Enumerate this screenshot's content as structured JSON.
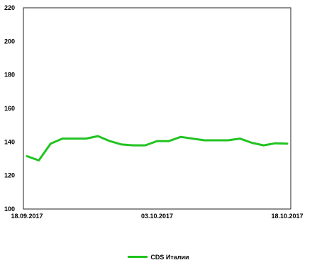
{
  "chart_data": {
    "type": "line",
    "x": [
      "18.09.2017",
      "19.09.2017",
      "20.09.2017",
      "21.09.2017",
      "22.09.2017",
      "25.09.2017",
      "26.09.2017",
      "27.09.2017",
      "28.09.2017",
      "29.09.2017",
      "02.10.2017",
      "03.10.2017",
      "04.10.2017",
      "05.10.2017",
      "06.10.2017",
      "09.10.2017",
      "10.10.2017",
      "11.10.2017",
      "12.10.2017",
      "13.10.2017",
      "16.10.2017",
      "17.10.2017",
      "18.10.2017"
    ],
    "series": [
      {
        "name": "CDS Италии",
        "color": "#22c322",
        "values": [
          131.5,
          129,
          139,
          142,
          142,
          142,
          143.5,
          140.5,
          138.5,
          138,
          138,
          140.5,
          140.5,
          143,
          142,
          141,
          141,
          141,
          142,
          139.5,
          138,
          139.2,
          139
        ]
      }
    ],
    "x_tick_labels": [
      "18.09.2017",
      "03.10.2017",
      "18.10.2017"
    ],
    "y_ticks": [
      100,
      120,
      140,
      160,
      180,
      200,
      220
    ],
    "ylim": [
      100,
      220
    ],
    "title": "",
    "xlabel": "",
    "ylabel": "",
    "grid": false,
    "legend_position": "bottom"
  }
}
